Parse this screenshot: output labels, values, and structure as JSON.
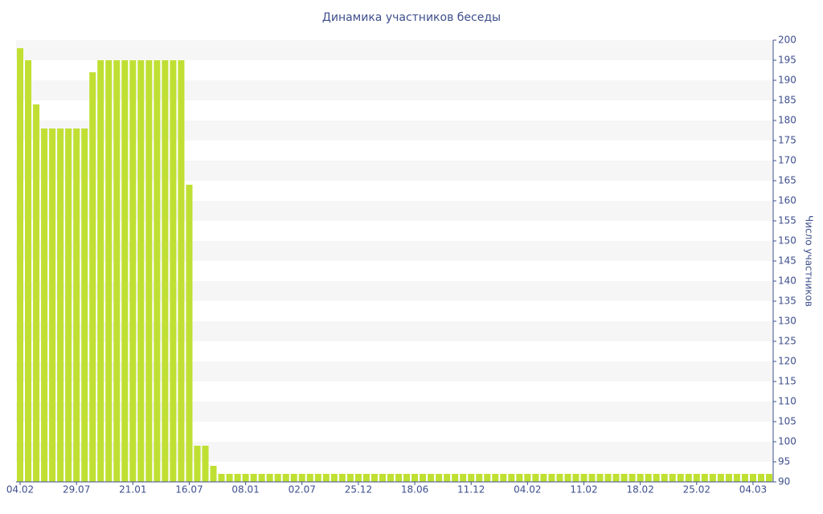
{
  "chart_data": {
    "type": "bar",
    "title": "Динамика участников беседы",
    "y_label": "Число участников",
    "categories": [
      "04.02",
      null,
      null,
      null,
      null,
      null,
      null,
      "29.07",
      null,
      null,
      null,
      null,
      null,
      null,
      "21.01",
      null,
      null,
      null,
      null,
      null,
      null,
      "16.07",
      null,
      null,
      null,
      null,
      null,
      null,
      "08.01",
      null,
      null,
      null,
      null,
      null,
      null,
      "02.07",
      null,
      null,
      null,
      null,
      null,
      null,
      "25.12",
      null,
      null,
      null,
      null,
      null,
      null,
      "18.06",
      null,
      null,
      null,
      null,
      null,
      null,
      "11.12",
      null,
      null,
      null,
      null,
      null,
      null,
      "04.02",
      null,
      null,
      null,
      null,
      null,
      null,
      "11.02",
      null,
      null,
      null,
      null,
      null,
      null,
      "18.02",
      null,
      null,
      null,
      null,
      null,
      null,
      "25.02",
      null,
      null,
      null,
      null,
      null,
      null,
      "04.03",
      null,
      null
    ],
    "values": [
      198,
      195,
      184,
      178,
      178,
      178,
      178,
      178,
      178,
      192,
      195,
      195,
      195,
      195,
      195,
      195,
      195,
      195,
      195,
      195,
      195,
      164,
      99,
      99,
      94,
      92,
      92,
      92,
      92,
      92,
      92,
      92,
      92,
      92,
      92,
      92,
      92,
      92,
      92,
      92,
      92,
      92,
      92,
      92,
      92,
      92,
      92,
      92,
      92,
      92,
      92,
      92,
      92,
      92,
      92,
      92,
      92,
      92,
      92,
      92,
      92,
      92,
      92,
      92,
      92,
      92,
      92,
      92,
      92,
      92,
      92,
      92,
      92,
      92,
      92,
      92,
      92,
      92,
      92,
      92,
      92,
      92,
      92,
      92,
      92,
      92,
      92,
      92,
      92,
      92,
      92,
      92,
      92,
      92
    ],
    "color": "#bfe033",
    "ylim": [
      90,
      200
    ],
    "yticks": [
      90,
      95,
      100,
      105,
      110,
      115,
      120,
      125,
      130,
      135,
      140,
      145,
      150,
      155,
      160,
      165,
      170,
      175,
      180,
      185,
      190,
      195,
      200
    ],
    "y_axis_side": "right",
    "grid": true
  }
}
